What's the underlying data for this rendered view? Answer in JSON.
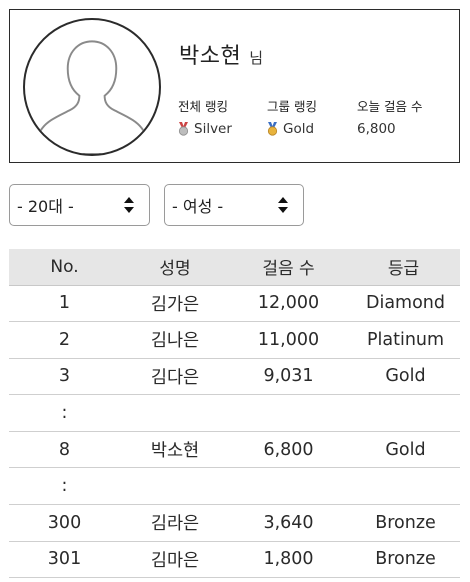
{
  "profile": {
    "name": "박소현",
    "honorific": "님",
    "stats": [
      {
        "label": "전체 랭킹",
        "value": "Silver",
        "medal": "silver-medal-icon",
        "color": "#b9b9b9"
      },
      {
        "label": "그룹 랭킹",
        "value": "Gold",
        "medal": "gold-medal-icon",
        "color": "#e0a93a"
      },
      {
        "label": "오늘 걸음 수",
        "value": "6,800"
      }
    ]
  },
  "filters": {
    "age": "- 20대 -",
    "gender": "- 여성 -"
  },
  "table": {
    "headers": [
      "No.",
      "성명",
      "걸음 수",
      "등급"
    ],
    "rows": [
      {
        "no": "1",
        "name": "김가은",
        "steps": "12,000",
        "grade": "Diamond"
      },
      {
        "no": "2",
        "name": "김나은",
        "steps": "11,000",
        "grade": "Platinum"
      },
      {
        "no": "3",
        "name": "김다은",
        "steps": "9,031",
        "grade": "Gold"
      },
      {
        "no": ":",
        "name": "",
        "steps": "",
        "grade": ""
      },
      {
        "no": "8",
        "name": "박소현",
        "steps": "6,800",
        "grade": "Gold"
      },
      {
        "no": ":",
        "name": "",
        "steps": "",
        "grade": ""
      },
      {
        "no": "300",
        "name": "김라은",
        "steps": "3,640",
        "grade": "Bronze"
      },
      {
        "no": "301",
        "name": "김마은",
        "steps": "1,800",
        "grade": "Bronze"
      }
    ]
  }
}
